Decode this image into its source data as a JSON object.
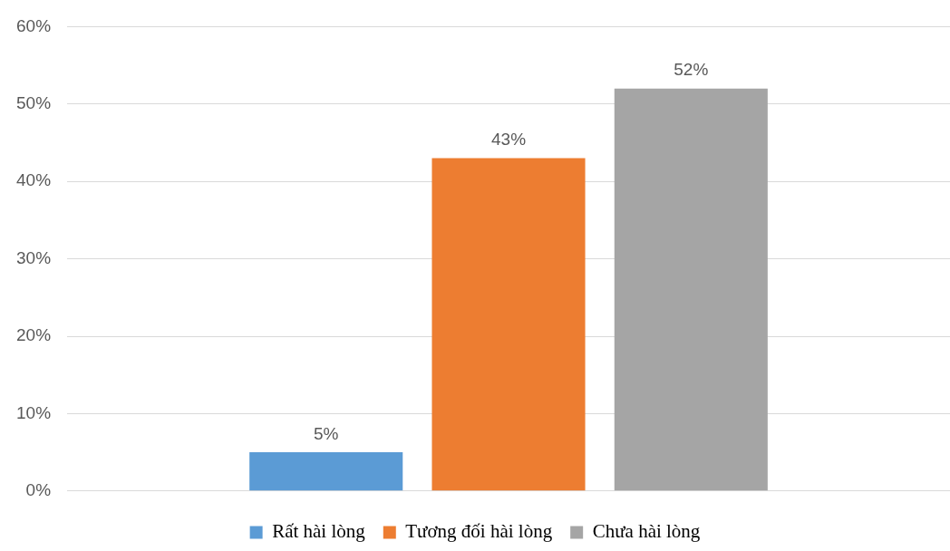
{
  "chart_data": {
    "type": "bar",
    "categories": [
      null
    ],
    "series": [
      {
        "name": "Rất hài lòng",
        "color": "#5b9bd5",
        "values": [
          5
        ],
        "value_labels": [
          "5%"
        ]
      },
      {
        "name": "Tương đối hài lòng",
        "color": "#ed7d31",
        "values": [
          43
        ],
        "value_labels": [
          "43%"
        ]
      },
      {
        "name": "Chưa hài lòng",
        "color": "#a5a5a5",
        "values": [
          52
        ],
        "value_labels": [
          "52%"
        ]
      }
    ],
    "ylim": [
      0,
      60
    ],
    "yticks": [
      {
        "value": 0,
        "label": "0%"
      },
      {
        "value": 10,
        "label": "10%"
      },
      {
        "value": 20,
        "label": "20%"
      },
      {
        "value": 30,
        "label": "30%"
      },
      {
        "value": 40,
        "label": "40%"
      },
      {
        "value": 50,
        "label": "50%"
      },
      {
        "value": 60,
        "label": "60%"
      }
    ],
    "grid": "y",
    "legend": "bottom"
  }
}
